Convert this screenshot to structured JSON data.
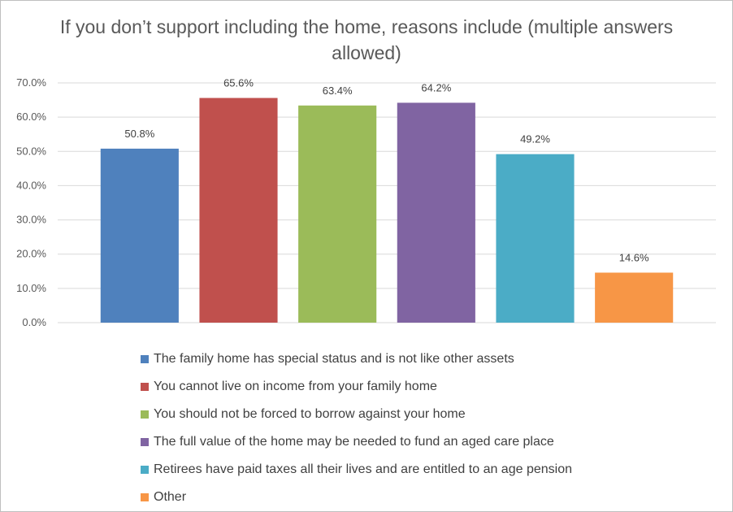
{
  "chart_data": {
    "type": "bar",
    "title": "If you don’t support including the home, reasons include (multiple answers allowed)",
    "categories": [
      "The family home has special status and is not like other assets",
      "You cannot live on income from your family home",
      "You should not be forced to borrow against your home",
      "The full value of the home may be needed to fund an aged care place",
      "Retirees have paid taxes all their lives and are entitled to an age pension",
      "Other"
    ],
    "values": [
      50.8,
      65.6,
      63.4,
      64.2,
      49.2,
      14.6
    ],
    "data_labels": [
      "50.8%",
      "65.6%",
      "63.4%",
      "64.2%",
      "49.2%",
      "14.6%"
    ],
    "colors": [
      "#4f81bd",
      "#c0504d",
      "#9bbb59",
      "#8064a2",
      "#4bacc6",
      "#f79646"
    ],
    "ylim": [
      0,
      70
    ],
    "yticks": [
      "0.0%",
      "10.0%",
      "20.0%",
      "30.0%",
      "40.0%",
      "50.0%",
      "60.0%",
      "70.0%"
    ],
    "grid": true,
    "legend_position": "bottom"
  }
}
